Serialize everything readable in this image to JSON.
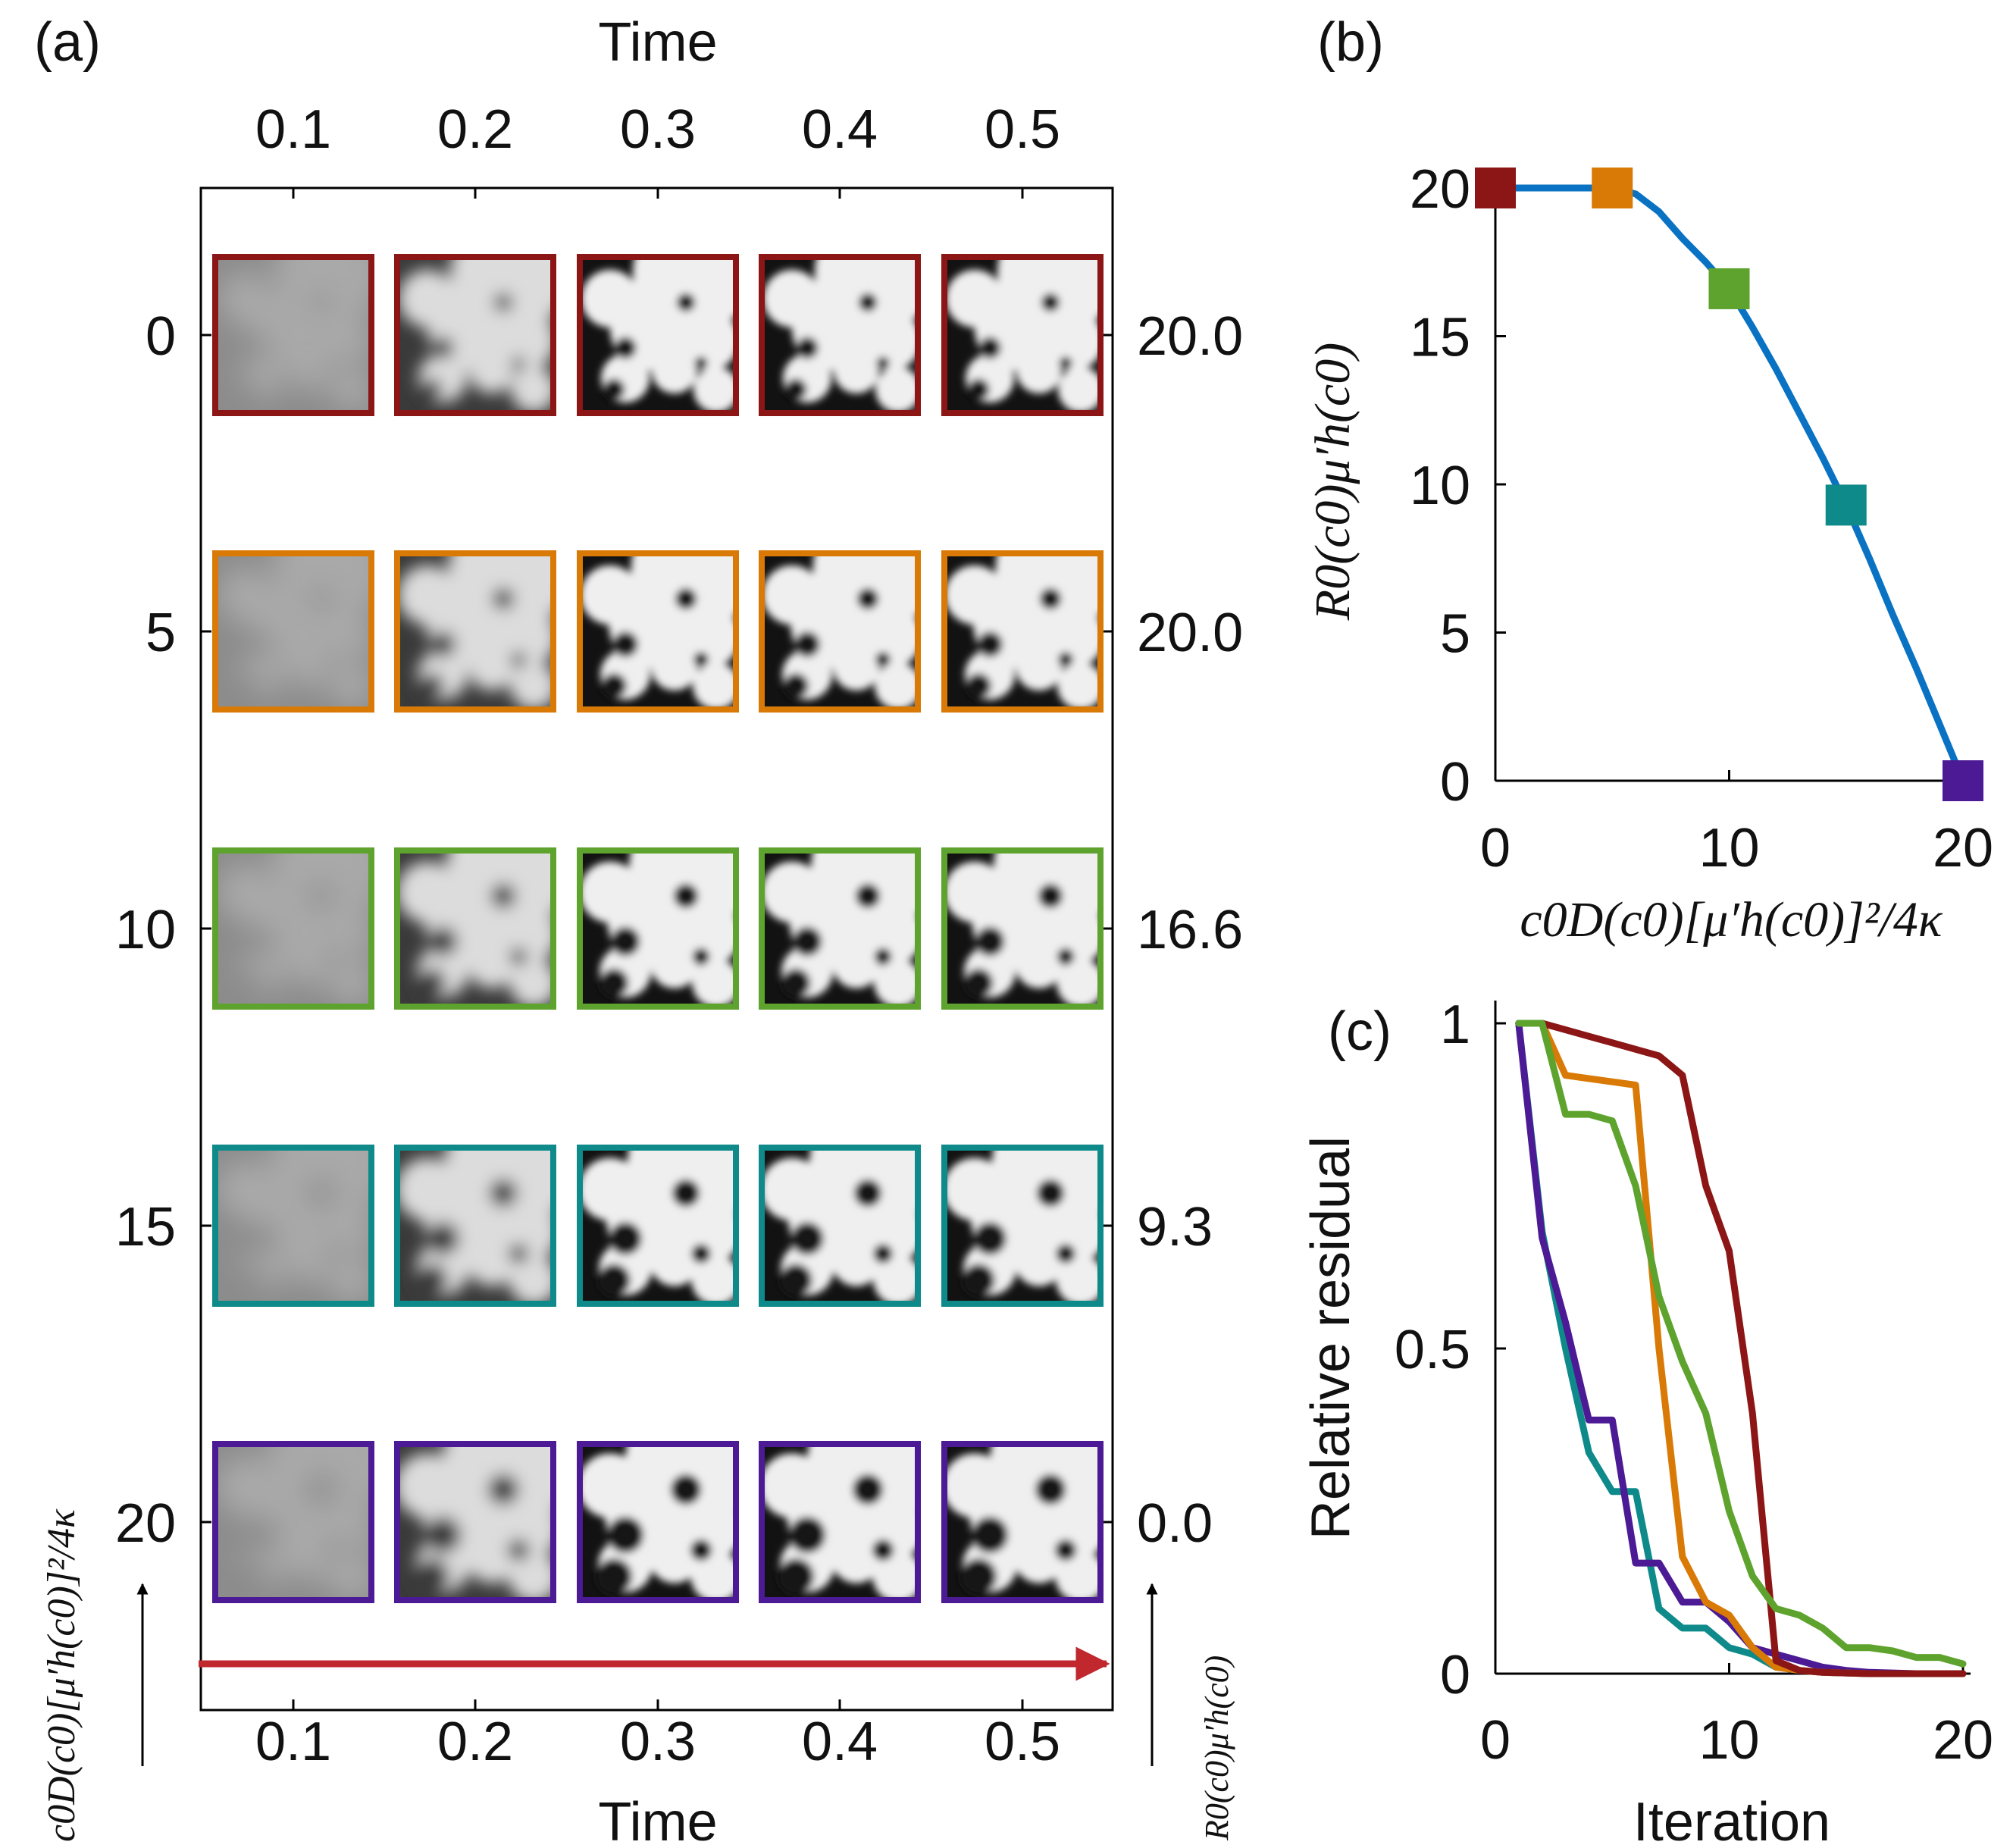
{
  "colors": {
    "series": [
      "#8c1515",
      "#d97a07",
      "#5ea32e",
      "#0f8a8a",
      "#4b1a94"
    ],
    "curve": "#0a72c2",
    "arrow": "#c0282d",
    "axis": "#000000"
  },
  "panel_a": {
    "label": "(a)",
    "time_title_top": "Time",
    "time_title_bottom": "Time",
    "times": [
      "0.1",
      "0.2",
      "0.3",
      "0.4",
      "0.5"
    ],
    "left_values": [
      "0",
      "5",
      "10",
      "15",
      "20"
    ],
    "right_values": [
      "20.0",
      "20.0",
      "16.6",
      "9.3",
      "0.0"
    ],
    "left_axis_label": "c0D(c0)[μ′h(c0)]²/4κ",
    "right_axis_label": "R0(c0)μ′h(c0)"
  },
  "chart_data": [
    {
      "panel": "(b)",
      "type": "line",
      "xlabel": "c0D(c0)[μ′h(c0)]²/4κ",
      "ylabel": "R0(c0)μ′h(c0)",
      "xlim": [
        0,
        20
      ],
      "ylim": [
        0,
        20
      ],
      "xticks": [
        "0",
        "10",
        "20"
      ],
      "yticks": [
        "0",
        "5",
        "10",
        "15",
        "20"
      ],
      "curve": {
        "x": [
          0,
          5,
          6,
          7,
          8,
          9,
          10,
          11,
          12,
          13,
          14,
          15,
          16,
          17,
          18,
          19,
          20
        ],
        "y": [
          20,
          20,
          19.8,
          19.2,
          18.3,
          17.5,
          16.6,
          15.3,
          13.9,
          12.4,
          10.9,
          9.3,
          7.5,
          5.6,
          3.8,
          1.9,
          0
        ]
      },
      "markers": {
        "x": [
          0,
          5,
          10,
          15,
          20
        ],
        "y": [
          20.0,
          20.0,
          16.6,
          9.3,
          0.0
        ]
      }
    },
    {
      "panel": "(c)",
      "type": "line",
      "xlabel": "Iteration",
      "ylabel": "Relative residual",
      "xlim": [
        0,
        20
      ],
      "ylim": [
        0,
        1
      ],
      "xticks": [
        "0",
        "10",
        "20"
      ],
      "yticks": [
        "0",
        "0.5",
        "1"
      ],
      "x": [
        1,
        2,
        3,
        4,
        5,
        6,
        7,
        8,
        9,
        10,
        11,
        12,
        13,
        14,
        15,
        16,
        17,
        18,
        19,
        20
      ],
      "series": [
        {
          "name": "0",
          "values": [
            1,
            1,
            0.99,
            0.98,
            0.97,
            0.96,
            0.95,
            0.92,
            0.75,
            0.65,
            0.4,
            0.02,
            0.005,
            0.002,
            0.001,
            0,
            0,
            0,
            0,
            0
          ]
        },
        {
          "name": "5",
          "values": [
            1,
            1,
            0.92,
            0.915,
            0.91,
            0.905,
            0.5,
            0.18,
            0.11,
            0.09,
            0.04,
            0.01,
            0.005,
            0.002,
            0.001,
            0,
            0,
            0,
            0,
            0
          ]
        },
        {
          "name": "10",
          "values": [
            1,
            1,
            0.86,
            0.86,
            0.85,
            0.75,
            0.58,
            0.48,
            0.4,
            0.25,
            0.15,
            0.1,
            0.09,
            0.07,
            0.04,
            0.04,
            0.035,
            0.025,
            0.025,
            0.015
          ]
        },
        {
          "name": "15",
          "values": [
            1,
            0.68,
            0.5,
            0.34,
            0.28,
            0.28,
            0.1,
            0.07,
            0.07,
            0.04,
            0.03,
            0.01,
            0.005,
            0.002,
            0.001,
            0,
            0,
            0,
            0,
            0
          ]
        },
        {
          "name": "20",
          "values": [
            1,
            0.67,
            0.54,
            0.39,
            0.39,
            0.17,
            0.17,
            0.11,
            0.11,
            0.08,
            0.04,
            0.03,
            0.02,
            0.01,
            0.005,
            0.002,
            0.001,
            0,
            0,
            0
          ]
        }
      ]
    }
  ]
}
